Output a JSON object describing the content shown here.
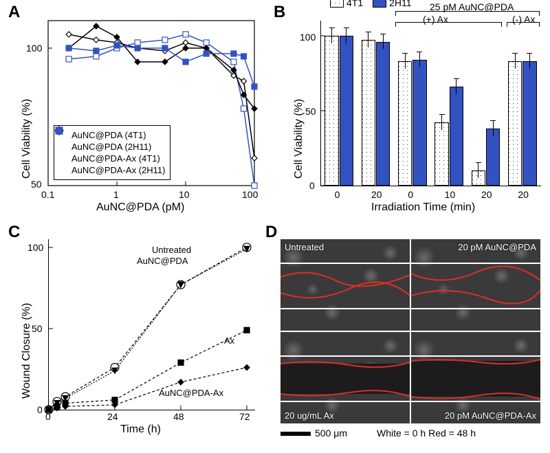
{
  "panelA": {
    "label": "A",
    "type": "line",
    "x_scale": "log",
    "xlim": [
      0.1,
      100
    ],
    "ylim": [
      50,
      110
    ],
    "x_ticks": [
      0.1,
      1,
      10,
      100
    ],
    "y_ticks": [
      50,
      100
    ],
    "xlabel": "AuNC@PDA (pM)",
    "ylabel": "Cell Viability (%)",
    "series": [
      {
        "name": "AuNC@PDA (4T1)",
        "marker": "diamond",
        "fill": "#ffffff",
        "stroke": "#000000",
        "x": [
          0.2,
          0.5,
          1,
          2,
          5,
          10,
          20,
          50,
          70,
          100
        ],
        "y": [
          105,
          103,
          102,
          100,
          99,
          102,
          100,
          90,
          88,
          60
        ]
      },
      {
        "name": "AuNC@PDA (2H11)",
        "marker": "square",
        "fill": "#ffffff",
        "stroke": "#3352c1",
        "x": [
          0.2,
          0.5,
          1,
          2,
          5,
          10,
          20,
          50,
          70,
          100
        ],
        "y": [
          96,
          97,
          100,
          102,
          103,
          105,
          102,
          95,
          78,
          50
        ]
      },
      {
        "name": "AuNC@PDA-Ax (4T1)",
        "marker": "diamond",
        "fill": "#000000",
        "stroke": "#000000",
        "x": [
          0.2,
          0.5,
          1,
          2,
          5,
          10,
          20,
          50,
          70,
          100
        ],
        "y": [
          100,
          108,
          104,
          95,
          95,
          100,
          100,
          92,
          83,
          78
        ]
      },
      {
        "name": "AuNC@PDA-Ax (2H11)",
        "marker": "square",
        "fill": "#3352c1",
        "stroke": "#3352c1",
        "x": [
          0.2,
          0.5,
          1,
          2,
          5,
          10,
          20,
          50,
          70,
          100
        ],
        "y": [
          100,
          99,
          101,
          100,
          100,
          95,
          98,
          98,
          97,
          86
        ]
      }
    ],
    "legend_fontsize": 13,
    "label_fontsize": 16,
    "background": "#ffffff",
    "line_width": 1.5,
    "marker_size": 8
  },
  "panelB": {
    "label": "B",
    "type": "bar-grouped",
    "ylim": [
      0,
      110
    ],
    "ylabel": "Cell Viability (%)",
    "xlabel": "Irradiation Time (min)",
    "y_ticks": [
      0,
      50,
      100
    ],
    "x_ticklabels": [
      "0",
      "20",
      "0",
      "10",
      "20",
      "20"
    ],
    "groups": [
      {
        "4T1": 100,
        "2H11": 100
      },
      {
        "4T1": 97,
        "2H11": 96
      },
      {
        "4T1": 83,
        "2H11": 84
      },
      {
        "4T1": 42,
        "2H11": 66
      },
      {
        "4T1": 10,
        "2H11": 38
      },
      {
        "4T1": 83,
        "2H11": 83
      }
    ],
    "error": 5,
    "colors": {
      "4T1_pattern": "hatched",
      "2H11_color": "#3352c1"
    },
    "annotation_main": "25 pM AuNC@PDA",
    "annotation_plus": "(+) Ax",
    "annotation_minus": "(-) Ax",
    "legend": {
      "s1": "4T1",
      "s2": "2H11"
    },
    "label_fontsize": 16,
    "bar_width": 0.38
  },
  "panelC": {
    "label": "C",
    "type": "line",
    "xlim": [
      0,
      75
    ],
    "ylim": [
      0,
      105
    ],
    "x_ticks": [
      0,
      24,
      48,
      72
    ],
    "y_ticks": [
      0,
      50,
      100
    ],
    "xlabel": "Time (h)",
    "ylabel": "Wound Closure (%)",
    "series": [
      {
        "name": "Untreated",
        "marker": "circle",
        "fill": "#ffffff",
        "stroke": "#000000",
        "dash": "4 3",
        "x": [
          0,
          3,
          6,
          24,
          48,
          72
        ],
        "y": [
          0,
          5,
          8,
          26,
          77,
          100
        ]
      },
      {
        "name": "AuNC@PDA",
        "marker": "triangle-down",
        "fill": "#000000",
        "stroke": "#000000",
        "dash": "2 2",
        "x": [
          0,
          3,
          6,
          24,
          48,
          72
        ],
        "y": [
          0,
          4,
          7,
          24,
          77,
          99
        ]
      },
      {
        "name": "Ax",
        "marker": "square",
        "fill": "#000000",
        "stroke": "#000000",
        "dash": "4 3",
        "x": [
          0,
          3,
          6,
          24,
          48,
          72
        ],
        "y": [
          0,
          2,
          4,
          6,
          29,
          49
        ]
      },
      {
        "name": "AuNC@PDA-Ax",
        "marker": "diamond",
        "fill": "#000000",
        "stroke": "#000000",
        "dash": "4 3",
        "x": [
          0,
          3,
          6,
          24,
          48,
          72
        ],
        "y": [
          0,
          1,
          2,
          3,
          17,
          26
        ]
      }
    ],
    "inline_labels": {
      "Untreated": "Untreated",
      "AuNC@PDA": "AuNC@PDA",
      "Ax": "Ax",
      "AuNC@PDA-Ax": "AuNC@PDA-Ax"
    },
    "label_fontsize": 16,
    "line_width": 1.2,
    "marker_size": 8
  },
  "panelD": {
    "label": "D",
    "type": "micrograph-grid",
    "cells": [
      {
        "label": "Untreated",
        "wound_closed": true
      },
      {
        "label": "20 pM AuNC@PDA",
        "wound_closed": true
      },
      {
        "label": "20 ug/mL Ax",
        "wound_closed": false
      },
      {
        "label": "20 pM AuNC@PDA-Ax",
        "wound_closed": false
      }
    ],
    "scalebar_label": "500 μm",
    "legend_text": "White = 0 h  Red = 48 h",
    "white_line_color": "#ffffff",
    "red_line_color": "#d93025",
    "background": "#3a3a3a"
  }
}
